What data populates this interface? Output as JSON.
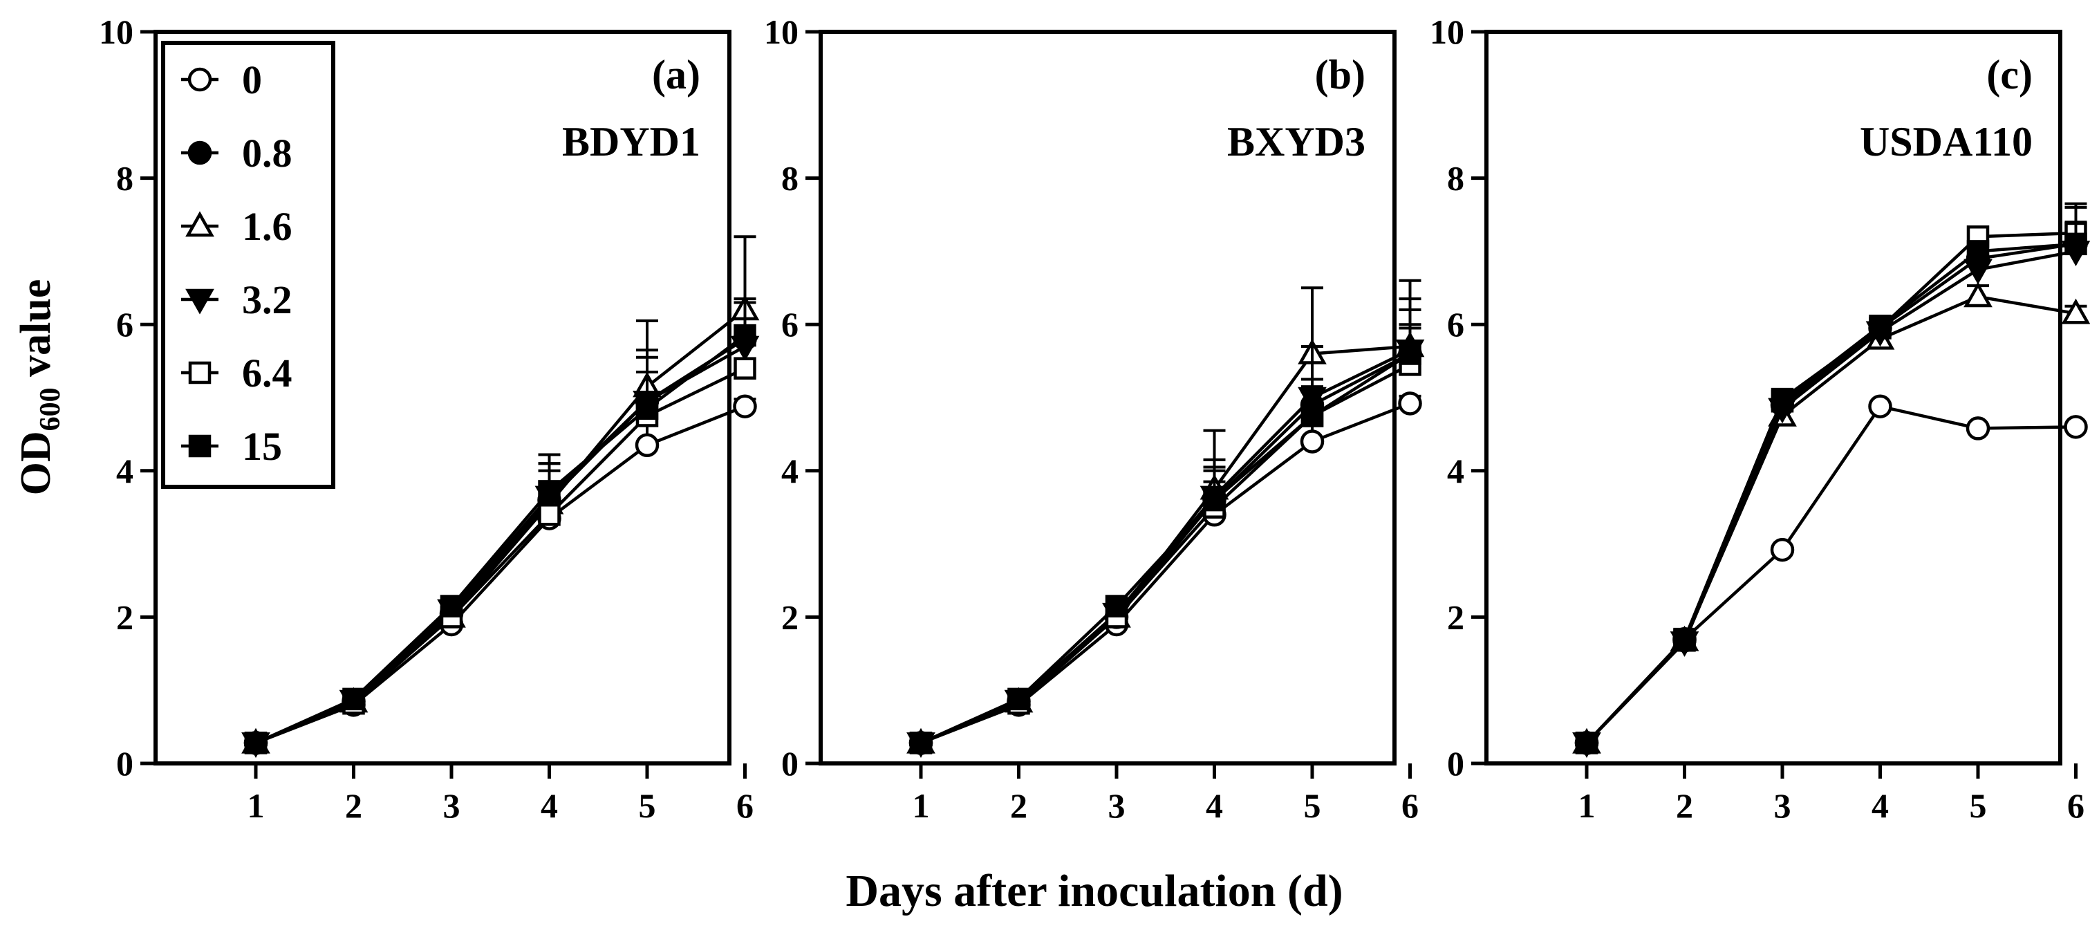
{
  "figure": {
    "ylabel_main": "OD",
    "ylabel_sub": "600",
    "ylabel_rest": " value",
    "xlabel": "Days after inoculation (d)"
  },
  "legend": {
    "entries": [
      {
        "label": "0",
        "marker": "circle-open"
      },
      {
        "label": "0.8",
        "marker": "circle-filled"
      },
      {
        "label": "1.6",
        "marker": "triangle-up-open"
      },
      {
        "label": "3.2",
        "marker": "triangle-down-filled"
      },
      {
        "label": "6.4",
        "marker": "square-open"
      },
      {
        "label": "15",
        "marker": "square-filled"
      }
    ]
  },
  "chart_data": [
    {
      "type": "line",
      "panel": "(a)",
      "title": "BDYD1",
      "x": [
        1,
        2,
        3,
        4,
        5,
        6
      ],
      "xticks": [
        "1",
        "2",
        "3",
        "4",
        "5",
        "6"
      ],
      "ylim": [
        0,
        10
      ],
      "yticks": [
        "0",
        "2",
        "4",
        "6",
        "8",
        "10"
      ],
      "series": [
        {
          "name": "0",
          "values": [
            0.28,
            0.8,
            1.9,
            3.35,
            4.35,
            4.88
          ],
          "errors": [
            0.03,
            0.03,
            0.05,
            0.2,
            0.3,
            0.1
          ]
        },
        {
          "name": "0.8",
          "values": [
            0.28,
            0.85,
            2.05,
            3.6,
            4.95,
            5.8
          ],
          "errors": [
            0.03,
            0.03,
            0.08,
            0.4,
            0.6,
            0.3
          ]
        },
        {
          "name": "1.6",
          "values": [
            0.28,
            0.84,
            2.0,
            3.55,
            5.15,
            6.2
          ],
          "errors": [
            0.03,
            0.03,
            0.08,
            0.55,
            0.9,
            1.0
          ]
        },
        {
          "name": "3.2",
          "values": [
            0.28,
            0.86,
            2.1,
            3.65,
            4.95,
            5.7
          ],
          "errors": [
            0.03,
            0.03,
            0.08,
            0.45,
            0.7,
            0.6
          ]
        },
        {
          "name": "6.4",
          "values": [
            0.28,
            0.82,
            2.0,
            3.4,
            4.75,
            5.4
          ],
          "errors": [
            0.03,
            0.03,
            0.08,
            0.3,
            0.6,
            0.4
          ]
        },
        {
          "name": "15",
          "values": [
            0.28,
            0.88,
            2.15,
            3.72,
            4.85,
            5.85
          ],
          "errors": [
            0.03,
            0.03,
            0.1,
            0.5,
            0.5,
            0.5
          ]
        }
      ]
    },
    {
      "type": "line",
      "panel": "(b)",
      "title": "BXYD3",
      "x": [
        1,
        2,
        3,
        4,
        5,
        6
      ],
      "xticks": [
        "1",
        "2",
        "3",
        "4",
        "5",
        "6"
      ],
      "ylim": [
        0,
        10
      ],
      "yticks": [
        "0",
        "2",
        "4",
        "6",
        "8",
        "10"
      ],
      "series": [
        {
          "name": "0",
          "values": [
            0.28,
            0.8,
            1.9,
            3.4,
            4.4,
            4.92
          ],
          "errors": [
            0.03,
            0.03,
            0.05,
            0.25,
            0.4,
            0.1
          ]
        },
        {
          "name": "0.8",
          "values": [
            0.28,
            0.85,
            2.0,
            3.6,
            4.9,
            5.6
          ],
          "errors": [
            0.03,
            0.03,
            0.08,
            0.4,
            0.6,
            0.4
          ]
        },
        {
          "name": "1.6",
          "values": [
            0.28,
            0.84,
            2.0,
            3.75,
            5.6,
            5.7
          ],
          "errors": [
            0.03,
            0.03,
            0.08,
            0.8,
            0.9,
            0.9
          ]
        },
        {
          "name": "3.2",
          "values": [
            0.28,
            0.86,
            2.05,
            3.65,
            5.0,
            5.65
          ],
          "errors": [
            0.03,
            0.03,
            0.08,
            0.5,
            0.7,
            0.7
          ]
        },
        {
          "name": "6.4",
          "values": [
            0.28,
            0.82,
            2.0,
            3.5,
            4.75,
            5.45
          ],
          "errors": [
            0.03,
            0.03,
            0.08,
            0.35,
            0.5,
            0.5
          ]
        },
        {
          "name": "15",
          "values": [
            0.28,
            0.88,
            2.15,
            3.6,
            4.75,
            5.6
          ],
          "errors": [
            0.03,
            0.03,
            0.1,
            0.45,
            0.4,
            0.6
          ]
        }
      ]
    },
    {
      "type": "line",
      "panel": "(c)",
      "title": "USDA110",
      "x": [
        1,
        2,
        3,
        4,
        5,
        6
      ],
      "xticks": [
        "1",
        "2",
        "3",
        "4",
        "5",
        "6"
      ],
      "ylim": [
        0,
        10
      ],
      "yticks": [
        "0",
        "2",
        "4",
        "6",
        "8",
        "10"
      ],
      "series": [
        {
          "name": "0",
          "values": [
            0.28,
            1.7,
            2.92,
            4.88,
            4.58,
            4.6
          ],
          "errors": [
            0.03,
            0.05,
            0.05,
            0.05,
            0.05,
            0.05
          ]
        },
        {
          "name": "0.8",
          "values": [
            0.28,
            1.68,
            4.9,
            5.95,
            6.9,
            7.1
          ],
          "errors": [
            0.03,
            0.05,
            0.08,
            0.08,
            0.1,
            0.2
          ]
        },
        {
          "name": "1.6",
          "values": [
            0.28,
            1.68,
            4.75,
            5.8,
            6.38,
            6.15
          ],
          "errors": [
            0.03,
            0.05,
            0.08,
            0.08,
            0.15,
            0.1
          ]
        },
        {
          "name": "3.2",
          "values": [
            0.28,
            1.66,
            4.85,
            5.9,
            6.75,
            7.0
          ],
          "errors": [
            0.03,
            0.05,
            0.08,
            0.08,
            0.2,
            0.6
          ]
        },
        {
          "name": "6.4",
          "values": [
            0.28,
            1.7,
            4.98,
            5.95,
            7.2,
            7.25
          ],
          "errors": [
            0.03,
            0.05,
            0.08,
            0.08,
            0.1,
            0.4
          ]
        },
        {
          "name": "15",
          "values": [
            0.28,
            1.68,
            4.95,
            5.98,
            7.0,
            7.1
          ],
          "errors": [
            0.03,
            0.05,
            0.08,
            0.08,
            0.1,
            0.3
          ]
        }
      ]
    }
  ]
}
